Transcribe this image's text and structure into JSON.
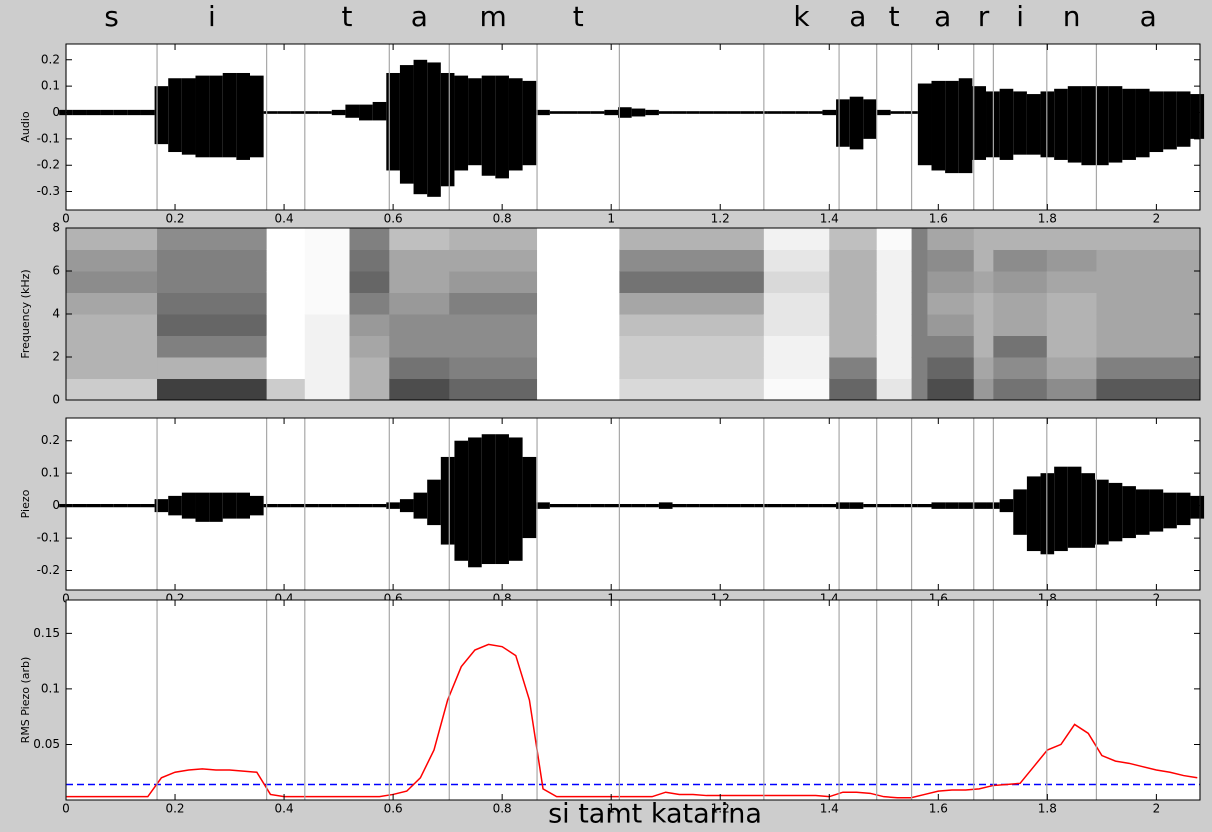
{
  "title": "si tamt katarina",
  "phonemes": [
    {
      "label": "s",
      "start": 0,
      "end": 0.167
    },
    {
      "label": "i",
      "start": 0.167,
      "end": 0.368
    },
    {
      "label": "t",
      "start": 0.438,
      "end": 0.593
    },
    {
      "label": "a",
      "start": 0.593,
      "end": 0.703
    },
    {
      "label": "m",
      "start": 0.703,
      "end": 0.864
    },
    {
      "label": "t",
      "start": 0.864,
      "end": 1.015
    },
    {
      "label": "k",
      "start": 1.28,
      "end": 1.418
    },
    {
      "label": "a",
      "start": 1.418,
      "end": 1.487
    },
    {
      "label": "t",
      "start": 1.487,
      "end": 1.551
    },
    {
      "label": "a",
      "start": 1.551,
      "end": 1.665
    },
    {
      "label": "r",
      "start": 1.665,
      "end": 1.701
    },
    {
      "label": "i",
      "start": 1.701,
      "end": 1.799
    },
    {
      "label": "n",
      "start": 1.799,
      "end": 1.89
    },
    {
      "label": "a",
      "start": 1.89,
      "end": 2.08
    }
  ],
  "chart_data": [
    {
      "type": "envelope",
      "ylabel": "Audio",
      "color": "#000000",
      "xlim": [
        0,
        2.08
      ],
      "xticks": [
        0,
        0.2,
        0.4,
        0.6,
        0.8,
        1,
        1.2,
        1.4,
        1.6,
        1.8,
        2
      ],
      "ylim": [
        -0.37,
        0.26
      ],
      "yticks": [
        -0.3,
        -0.2,
        -0.1,
        0,
        0.1,
        0.2
      ],
      "x": [
        0,
        0.025,
        0.05,
        0.075,
        0.1,
        0.125,
        0.15,
        0.175,
        0.2,
        0.225,
        0.25,
        0.275,
        0.3,
        0.325,
        0.35,
        0.375,
        0.4,
        0.425,
        0.45,
        0.475,
        0.5,
        0.525,
        0.55,
        0.575,
        0.6,
        0.625,
        0.65,
        0.675,
        0.7,
        0.725,
        0.75,
        0.775,
        0.8,
        0.825,
        0.85,
        0.875,
        0.9,
        0.925,
        0.95,
        0.975,
        1,
        1.025,
        1.05,
        1.075,
        1.1,
        1.125,
        1.15,
        1.175,
        1.2,
        1.225,
        1.25,
        1.275,
        1.3,
        1.325,
        1.35,
        1.375,
        1.4,
        1.425,
        1.45,
        1.475,
        1.5,
        1.525,
        1.55,
        1.575,
        1.6,
        1.625,
        1.65,
        1.675,
        1.7,
        1.725,
        1.75,
        1.775,
        1.8,
        1.825,
        1.85,
        1.875,
        1.9,
        1.925,
        1.95,
        1.975,
        2,
        2.025,
        2.05,
        2.075
      ],
      "upper": [
        0.01,
        0.01,
        0.01,
        0.01,
        0.01,
        0.01,
        0.01,
        0.1,
        0.13,
        0.13,
        0.14,
        0.14,
        0.15,
        0.15,
        0.14,
        0.005,
        0.005,
        0.005,
        0.005,
        0.005,
        0.01,
        0.03,
        0.03,
        0.04,
        0.15,
        0.18,
        0.2,
        0.19,
        0.15,
        0.14,
        0.13,
        0.14,
        0.14,
        0.13,
        0.12,
        0.01,
        0.005,
        0.005,
        0.005,
        0.005,
        0.01,
        0.02,
        0.015,
        0.01,
        0.005,
        0.005,
        0.005,
        0.005,
        0.005,
        0.005,
        0.005,
        0.005,
        0.005,
        0.005,
        0.005,
        0.005,
        0.01,
        0.05,
        0.06,
        0.05,
        0.01,
        0.005,
        0.005,
        0.11,
        0.12,
        0.12,
        0.13,
        0.1,
        0.08,
        0.09,
        0.08,
        0.07,
        0.08,
        0.09,
        0.1,
        0.1,
        0.1,
        0.1,
        0.09,
        0.09,
        0.08,
        0.08,
        0.08,
        0.07
      ],
      "lower": [
        -0.01,
        -0.01,
        -0.01,
        -0.01,
        -0.01,
        -0.01,
        -0.01,
        -0.12,
        -0.15,
        -0.16,
        -0.17,
        -0.17,
        -0.17,
        -0.18,
        -0.17,
        -0.005,
        -0.005,
        -0.005,
        -0.005,
        -0.005,
        -0.01,
        -0.02,
        -0.03,
        -0.03,
        -0.22,
        -0.27,
        -0.31,
        -0.32,
        -0.28,
        -0.22,
        -0.2,
        -0.24,
        -0.25,
        -0.22,
        -0.2,
        -0.01,
        -0.005,
        -0.005,
        -0.005,
        -0.005,
        -0.01,
        -0.02,
        -0.015,
        -0.01,
        -0.005,
        -0.005,
        -0.005,
        -0.005,
        -0.005,
        -0.005,
        -0.005,
        -0.005,
        -0.005,
        -0.005,
        -0.005,
        -0.005,
        -0.01,
        -0.13,
        -0.14,
        -0.1,
        -0.01,
        -0.005,
        -0.005,
        -0.2,
        -0.22,
        -0.23,
        -0.23,
        -0.18,
        -0.17,
        -0.18,
        -0.16,
        -0.16,
        -0.17,
        -0.18,
        -0.19,
        -0.2,
        -0.2,
        -0.19,
        -0.18,
        -0.17,
        -0.15,
        -0.14,
        -0.13,
        -0.1
      ]
    },
    {
      "type": "heatmap",
      "ylabel": "Frequency (kHz)",
      "xlim": [
        0,
        2.08
      ],
      "ylim": [
        0,
        8
      ],
      "yticks": [
        0,
        2,
        4,
        6,
        8
      ],
      "xbins": [
        0,
        0.167,
        0.368,
        0.438,
        0.52,
        0.593,
        0.703,
        0.864,
        1.015,
        1.28,
        1.4,
        1.487,
        1.551,
        1.58,
        1.665,
        1.701,
        1.799,
        1.89,
        2.08
      ],
      "ybins": [
        0,
        1,
        2,
        3,
        4,
        5,
        6,
        7,
        8
      ],
      "values": [
        [
          0.2,
          0.3,
          0.3,
          0.3,
          0.35,
          0.45,
          0.4,
          0.3
        ],
        [
          0.75,
          0.3,
          0.5,
          0.6,
          0.55,
          0.5,
          0.5,
          0.45
        ],
        [
          0.2,
          0,
          0,
          0,
          0,
          0,
          0,
          0
        ],
        [
          0.05,
          0.05,
          0.05,
          0.05,
          0.02,
          0.02,
          0.02,
          0.02
        ],
        [
          0.3,
          0.3,
          0.35,
          0.4,
          0.5,
          0.6,
          0.55,
          0.5
        ],
        [
          0.7,
          0.55,
          0.45,
          0.45,
          0.4,
          0.35,
          0.35,
          0.25
        ],
        [
          0.6,
          0.5,
          0.45,
          0.45,
          0.5,
          0.4,
          0.35,
          0.3
        ],
        [
          0,
          0,
          0,
          0,
          0,
          0,
          0,
          0
        ],
        [
          0.15,
          0.2,
          0.2,
          0.25,
          0.35,
          0.55,
          0.45,
          0.3
        ],
        [
          0.02,
          0.05,
          0.05,
          0.1,
          0.1,
          0.15,
          0.1,
          0.05
        ],
        [
          0.6,
          0.5,
          0.3,
          0.3,
          0.3,
          0.3,
          0.3,
          0.25
        ],
        [
          0.1,
          0.05,
          0.05,
          0.05,
          0.05,
          0.05,
          0.05,
          0.02
        ],
        [
          0.5,
          0.5,
          0.5,
          0.5,
          0.5,
          0.5,
          0.5,
          0.5
        ],
        [
          0.7,
          0.6,
          0.5,
          0.4,
          0.35,
          0.4,
          0.45,
          0.35
        ],
        [
          0.4,
          0.35,
          0.3,
          0.3,
          0.3,
          0.35,
          0.3,
          0.3
        ],
        [
          0.55,
          0.45,
          0.55,
          0.35,
          0.35,
          0.4,
          0.45,
          0.3
        ],
        [
          0.45,
          0.35,
          0.3,
          0.3,
          0.3,
          0.35,
          0.4,
          0.3
        ],
        [
          0.65,
          0.5,
          0.35,
          0.35,
          0.35,
          0.35,
          0.35,
          0.3
        ]
      ]
    },
    {
      "type": "envelope",
      "ylabel": "Piezo",
      "color": "#000000",
      "xlim": [
        0,
        2.08
      ],
      "xticks": [
        0,
        0.2,
        0.4,
        0.6,
        0.8,
        1,
        1.2,
        1.4,
        1.6,
        1.8,
        2
      ],
      "ylim": [
        -0.26,
        0.27
      ],
      "yticks": [
        -0.2,
        -0.1,
        0,
        0.1,
        0.2
      ],
      "x": [
        0,
        0.025,
        0.05,
        0.075,
        0.1,
        0.125,
        0.15,
        0.175,
        0.2,
        0.225,
        0.25,
        0.275,
        0.3,
        0.325,
        0.35,
        0.375,
        0.4,
        0.425,
        0.45,
        0.475,
        0.5,
        0.525,
        0.55,
        0.575,
        0.6,
        0.625,
        0.65,
        0.675,
        0.7,
        0.725,
        0.75,
        0.775,
        0.8,
        0.825,
        0.85,
        0.875,
        0.9,
        0.925,
        0.95,
        0.975,
        1,
        1.025,
        1.05,
        1.075,
        1.1,
        1.125,
        1.15,
        1.175,
        1.2,
        1.225,
        1.25,
        1.275,
        1.3,
        1.325,
        1.35,
        1.375,
        1.4,
        1.425,
        1.45,
        1.475,
        1.5,
        1.525,
        1.55,
        1.575,
        1.6,
        1.625,
        1.65,
        1.675,
        1.7,
        1.725,
        1.75,
        1.775,
        1.8,
        1.825,
        1.85,
        1.875,
        1.9,
        1.925,
        1.95,
        1.975,
        2,
        2.025,
        2.05,
        2.075
      ],
      "upper": [
        0.005,
        0.005,
        0.005,
        0.005,
        0.005,
        0.005,
        0.005,
        0.02,
        0.03,
        0.04,
        0.04,
        0.04,
        0.04,
        0.04,
        0.03,
        0.005,
        0.005,
        0.005,
        0.005,
        0.005,
        0.005,
        0.005,
        0.005,
        0.005,
        0.01,
        0.02,
        0.04,
        0.08,
        0.15,
        0.2,
        0.21,
        0.22,
        0.22,
        0.21,
        0.15,
        0.01,
        0.005,
        0.005,
        0.005,
        0.005,
        0.005,
        0.005,
        0.005,
        0.005,
        0.01,
        0.005,
        0.005,
        0.005,
        0.005,
        0.005,
        0.005,
        0.005,
        0.005,
        0.005,
        0.005,
        0.005,
        0.005,
        0.01,
        0.01,
        0.005,
        0.005,
        0.005,
        0.005,
        0.005,
        0.01,
        0.01,
        0.01,
        0.01,
        0.01,
        0.02,
        0.05,
        0.09,
        0.1,
        0.12,
        0.12,
        0.1,
        0.08,
        0.07,
        0.06,
        0.05,
        0.05,
        0.04,
        0.04,
        0.03
      ],
      "lower": [
        -0.005,
        -0.005,
        -0.005,
        -0.005,
        -0.005,
        -0.005,
        -0.005,
        -0.02,
        -0.03,
        -0.04,
        -0.05,
        -0.05,
        -0.04,
        -0.04,
        -0.03,
        -0.005,
        -0.005,
        -0.005,
        -0.005,
        -0.005,
        -0.005,
        -0.005,
        -0.005,
        -0.005,
        -0.01,
        -0.02,
        -0.04,
        -0.06,
        -0.12,
        -0.17,
        -0.19,
        -0.18,
        -0.18,
        -0.17,
        -0.1,
        -0.01,
        -0.005,
        -0.005,
        -0.005,
        -0.005,
        -0.005,
        -0.005,
        -0.005,
        -0.005,
        -0.01,
        -0.005,
        -0.005,
        -0.005,
        -0.005,
        -0.005,
        -0.005,
        -0.005,
        -0.005,
        -0.005,
        -0.005,
        -0.005,
        -0.005,
        -0.01,
        -0.01,
        -0.005,
        -0.005,
        -0.005,
        -0.005,
        -0.005,
        -0.01,
        -0.01,
        -0.01,
        -0.01,
        -0.01,
        -0.02,
        -0.09,
        -0.14,
        -0.15,
        -0.14,
        -0.13,
        -0.13,
        -0.12,
        -0.11,
        -0.1,
        -0.09,
        -0.08,
        -0.07,
        -0.06,
        -0.04
      ]
    },
    {
      "type": "line",
      "ylabel": "RMS Piezo (arb)",
      "xlim": [
        0,
        2.08
      ],
      "xticks": [
        0,
        0.2,
        0.4,
        0.6,
        0.8,
        1,
        1.2,
        1.4,
        1.6,
        1.8,
        2
      ],
      "ylim": [
        0,
        0.18
      ],
      "yticks": [
        0.05,
        0.1,
        0.15
      ],
      "x": [
        0,
        0.025,
        0.05,
        0.075,
        0.1,
        0.125,
        0.15,
        0.175,
        0.2,
        0.225,
        0.25,
        0.275,
        0.3,
        0.325,
        0.35,
        0.375,
        0.4,
        0.425,
        0.45,
        0.475,
        0.5,
        0.525,
        0.55,
        0.575,
        0.6,
        0.625,
        0.65,
        0.675,
        0.7,
        0.725,
        0.75,
        0.775,
        0.8,
        0.825,
        0.85,
        0.875,
        0.9,
        0.925,
        0.95,
        0.975,
        1,
        1.025,
        1.05,
        1.075,
        1.1,
        1.125,
        1.15,
        1.175,
        1.2,
        1.225,
        1.25,
        1.275,
        1.3,
        1.325,
        1.35,
        1.375,
        1.4,
        1.425,
        1.45,
        1.475,
        1.5,
        1.525,
        1.55,
        1.575,
        1.6,
        1.625,
        1.65,
        1.675,
        1.7,
        1.725,
        1.75,
        1.775,
        1.8,
        1.825,
        1.85,
        1.875,
        1.9,
        1.925,
        1.95,
        1.975,
        2,
        2.025,
        2.05,
        2.075
      ],
      "series": [
        {
          "color": "#ff0000",
          "values": [
            0.003,
            0.003,
            0.003,
            0.003,
            0.003,
            0.003,
            0.003,
            0.02,
            0.025,
            0.027,
            0.028,
            0.027,
            0.027,
            0.026,
            0.025,
            0.005,
            0.003,
            0.003,
            0.003,
            0.003,
            0.003,
            0.003,
            0.003,
            0.003,
            0.005,
            0.008,
            0.02,
            0.045,
            0.09,
            0.12,
            0.135,
            0.14,
            0.138,
            0.13,
            0.09,
            0.01,
            0.003,
            0.003,
            0.003,
            0.003,
            0.003,
            0.003,
            0.003,
            0.003,
            0.007,
            0.005,
            0.005,
            0.004,
            0.004,
            0.004,
            0.004,
            0.004,
            0.004,
            0.004,
            0.004,
            0.004,
            0.003,
            0.007,
            0.007,
            0.006,
            0.003,
            0.002,
            0.002,
            0.005,
            0.008,
            0.009,
            0.009,
            0.01,
            0.013,
            0.014,
            0.015,
            0.03,
            0.045,
            0.05,
            0.068,
            0.06,
            0.04,
            0.035,
            0.033,
            0.03,
            0.027,
            0.025,
            0.022,
            0.02
          ]
        }
      ],
      "hlines": [
        {
          "value": 0.014,
          "color": "#0000ff"
        }
      ]
    }
  ]
}
